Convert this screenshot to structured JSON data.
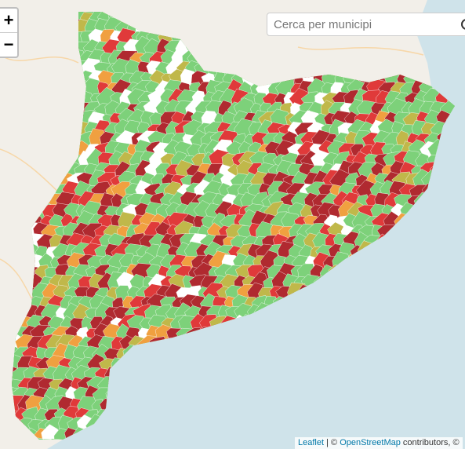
{
  "zoom_controls": {
    "zoom_in": "+",
    "zoom_out": "−"
  },
  "search": {
    "placeholder": "Cerca per municipi"
  },
  "attribution": {
    "leaflet": "Leaflet",
    "separator": "|",
    "copyright": "©",
    "osm": "OpenStreetMap",
    "contributors": "contributors, ©"
  }
}
